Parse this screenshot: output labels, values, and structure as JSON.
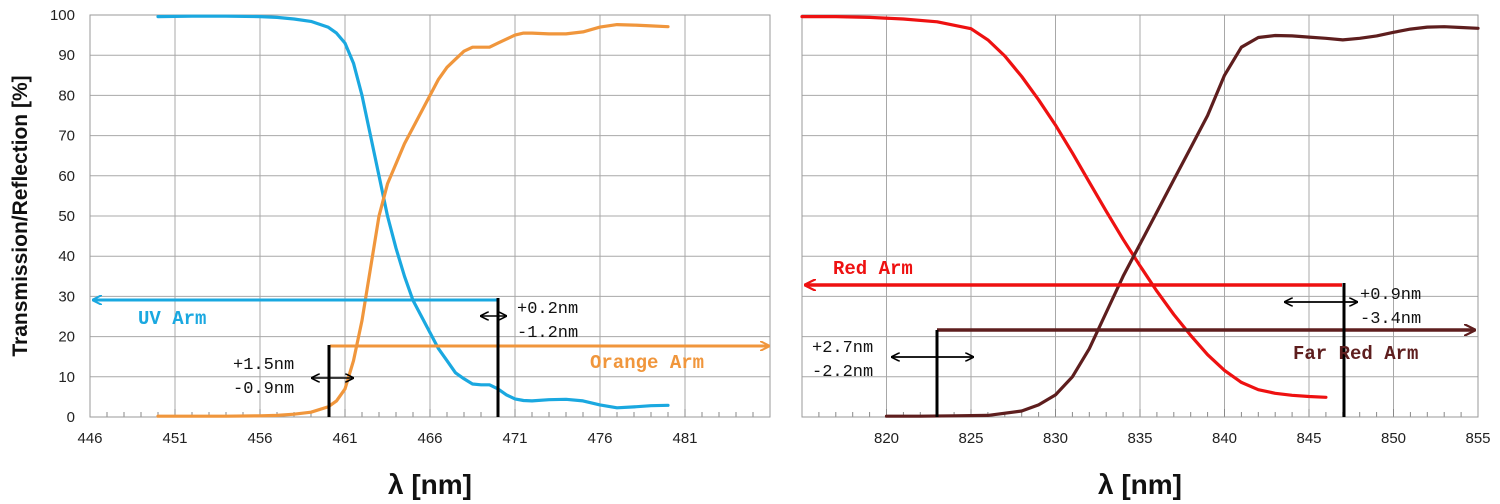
{
  "chart_data": [
    {
      "type": "line",
      "ylabel": "Transmission/Reflection [%]",
      "xlabel": "λ [nm]",
      "xlim": [
        446,
        486
      ],
      "ylim": [
        0,
        100
      ],
      "xticks": [
        446,
        451,
        456,
        461,
        466,
        471,
        476,
        481
      ],
      "yticks": [
        0,
        10,
        20,
        30,
        40,
        50,
        60,
        70,
        80,
        90,
        100
      ],
      "grid": true,
      "series": [
        {
          "name": "UV Arm",
          "color": "#1aa8e0",
          "points": [
            [
              450,
              99.6
            ],
            [
              452,
              99.7
            ],
            [
              454,
              99.7
            ],
            [
              456,
              99.6
            ],
            [
              457,
              99.4
            ],
            [
              458,
              99.0
            ],
            [
              459,
              98.4
            ],
            [
              460,
              97.0
            ],
            [
              460.5,
              95.5
            ],
            [
              461,
              93
            ],
            [
              461.5,
              88
            ],
            [
              462,
              80
            ],
            [
              462.5,
              70
            ],
            [
              463,
              60
            ],
            [
              463.5,
              50
            ],
            [
              464,
              42
            ],
            [
              464.5,
              35
            ],
            [
              465,
              29
            ],
            [
              465.5,
              25
            ],
            [
              466,
              21
            ],
            [
              466.5,
              17
            ],
            [
              467,
              14
            ],
            [
              467.5,
              11
            ],
            [
              468,
              9.5
            ],
            [
              468.5,
              8.2
            ],
            [
              469,
              8
            ],
            [
              469.5,
              8
            ],
            [
              470,
              7
            ],
            [
              470.5,
              5.5
            ],
            [
              471,
              4.5
            ],
            [
              471.5,
              4.1
            ],
            [
              472,
              4.0
            ],
            [
              473,
              4.3
            ],
            [
              474,
              4.4
            ],
            [
              475,
              4.0
            ],
            [
              476,
              3.0
            ],
            [
              477,
              2.3
            ],
            [
              478,
              2.5
            ],
            [
              479,
              2.8
            ],
            [
              480,
              2.9
            ]
          ]
        },
        {
          "name": "Orange Arm",
          "color": "#f0963c",
          "points": [
            [
              450,
              0.2
            ],
            [
              452,
              0.2
            ],
            [
              454,
              0.2
            ],
            [
              456,
              0.3
            ],
            [
              457,
              0.4
            ],
            [
              458,
              0.7
            ],
            [
              459,
              1.2
            ],
            [
              460,
              2.5
            ],
            [
              460.5,
              4
            ],
            [
              461,
              7
            ],
            [
              461.5,
              14
            ],
            [
              462,
              24
            ],
            [
              462.5,
              37
            ],
            [
              463,
              50
            ],
            [
              463.5,
              58
            ],
            [
              464,
              63
            ],
            [
              464.5,
              68
            ],
            [
              465,
              72
            ],
            [
              465.5,
              76
            ],
            [
              466,
              80
            ],
            [
              466.5,
              84
            ],
            [
              467,
              87
            ],
            [
              467.5,
              89
            ],
            [
              468,
              91
            ],
            [
              468.5,
              92
            ],
            [
              469,
              92
            ],
            [
              469.5,
              92
            ],
            [
              470,
              93
            ],
            [
              470.5,
              94
            ],
            [
              471,
              95
            ],
            [
              471.5,
              95.5
            ],
            [
              472,
              95.5
            ],
            [
              473,
              95.3
            ],
            [
              474,
              95.3
            ],
            [
              475,
              95.8
            ],
            [
              476,
              97
            ],
            [
              477,
              97.6
            ],
            [
              478,
              97.5
            ],
            [
              479,
              97.3
            ],
            [
              480,
              97.1
            ]
          ]
        }
      ],
      "arm_labels": [
        {
          "name": "UV Arm",
          "color": "#1aa8e0"
        },
        {
          "name": "Orange Arm",
          "color": "#f0963c"
        }
      ],
      "annotations": [
        {
          "upper": "+1.5nm",
          "lower": "-0.9nm"
        },
        {
          "upper": "+0.2nm",
          "lower": "-1.2nm"
        }
      ]
    },
    {
      "type": "line",
      "xlabel": "λ [nm]",
      "xlim": [
        815,
        855
      ],
      "ylim": [
        0,
        100
      ],
      "xticks": [
        820,
        825,
        830,
        835,
        840,
        845,
        850,
        855
      ],
      "yticks": [
        0,
        10,
        20,
        30,
        40,
        50,
        60,
        70,
        80,
        90,
        100
      ],
      "grid": true,
      "series": [
        {
          "name": "Red Arm",
          "color": "#ee1111",
          "points": [
            [
              815,
              99.6
            ],
            [
              817,
              99.6
            ],
            [
              819,
              99.4
            ],
            [
              821,
              99.0
            ],
            [
              823,
              98.3
            ],
            [
              825,
              96.6
            ],
            [
              826,
              93.8
            ],
            [
              827,
              89.8
            ],
            [
              828,
              84.7
            ],
            [
              829,
              78.9
            ],
            [
              830,
              72.6
            ],
            [
              831,
              65.7
            ],
            [
              832,
              58.4
            ],
            [
              833,
              51.2
            ],
            [
              834,
              44.2
            ],
            [
              835,
              37.6
            ],
            [
              836,
              31.3
            ],
            [
              837,
              25.5
            ],
            [
              838,
              20.3
            ],
            [
              839,
              15.5
            ],
            [
              840,
              11.6
            ],
            [
              841,
              8.6
            ],
            [
              842,
              6.8
            ],
            [
              843,
              5.9
            ],
            [
              844,
              5.4
            ],
            [
              845,
              5.1
            ],
            [
              846,
              4.9
            ]
          ]
        },
        {
          "name": "Far Red Arm",
          "color": "#5e1e1e",
          "points": [
            [
              820,
              0.2
            ],
            [
              822,
              0.2
            ],
            [
              824,
              0.3
            ],
            [
              826,
              0.4
            ],
            [
              828,
              1.5
            ],
            [
              829,
              3.0
            ],
            [
              830,
              5.5
            ],
            [
              831,
              10
            ],
            [
              832,
              17
            ],
            [
              833,
              26
            ],
            [
              834,
              35
            ],
            [
              835,
              43
            ],
            [
              836,
              51
            ],
            [
              837,
              59
            ],
            [
              838,
              67
            ],
            [
              839,
              75
            ],
            [
              840,
              85
            ],
            [
              841,
              92
            ],
            [
              842,
              94.4
            ],
            [
              843,
              94.9
            ],
            [
              844,
              94.8
            ],
            [
              845,
              94.5
            ],
            [
              846,
              94.2
            ],
            [
              847,
              93.8
            ],
            [
              848,
              94.2
            ],
            [
              849,
              94.8
            ],
            [
              850,
              95.7
            ],
            [
              851,
              96.5
            ],
            [
              852,
              97.0
            ],
            [
              853,
              97.1
            ],
            [
              854,
              96.9
            ],
            [
              855,
              96.7
            ]
          ]
        }
      ],
      "arm_labels": [
        {
          "name": "Red Arm",
          "color": "#ee1111"
        },
        {
          "name": "Far Red Arm",
          "color": "#5e1e1e"
        }
      ],
      "annotations": [
        {
          "upper": "+2.7nm",
          "lower": "-2.2nm"
        },
        {
          "upper": "+0.9nm",
          "lower": "-3.4nm"
        }
      ]
    }
  ]
}
